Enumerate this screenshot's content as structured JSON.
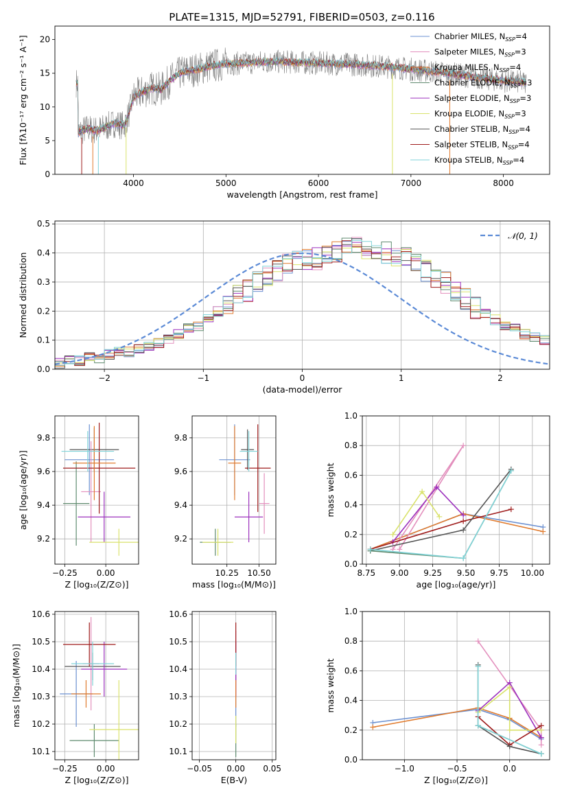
{
  "figure_title": "PLATE=1315, MJD=52791, FIBERID=0503, z=0.116",
  "colors": {
    "chabrier_miles": "#6a8fd0",
    "salpeter_miles": "#e38fbd",
    "kroupa_miles": "#e07a2c",
    "chabrier_elodie": "#5e8a6e",
    "salpeter_elodie": "#9b2fbd",
    "kroupa_elodie": "#d9e26a",
    "chabrier_stelib": "#555555",
    "salpeter_stelib": "#9e1a1a",
    "kroupa_stelib": "#7fd3d8",
    "gaussian": "#5b8ad6",
    "grid": "#b0b0b0"
  },
  "chart_data": [
    {
      "id": "spectrum",
      "type": "line",
      "xlabel": "wavelength [Angstrom, rest frame]",
      "ylabel": "Flux [fλ10⁻¹⁷ erg cm⁻² s⁻¹ A⁻¹]",
      "xlim": [
        3150,
        8500
      ],
      "ylim": [
        0,
        22
      ],
      "xticks": [
        4000,
        5000,
        6000,
        7000,
        8000
      ],
      "yticks": [
        0,
        5,
        10,
        15,
        20
      ],
      "grid": false,
      "legend_position": "top-right",
      "legend": [
        {
          "label": "Chabrier MILES, N",
          "sub": "SSP",
          "tail": "=4",
          "color": "chabrier_miles"
        },
        {
          "label": "Salpeter MILES, N",
          "sub": "SSP",
          "tail": "=3",
          "color": "salpeter_miles"
        },
        {
          "label": "Kroupa MILES, N",
          "sub": "SSP",
          "tail": "=4",
          "color": "kroupa_miles"
        },
        {
          "label": "Chabrier ELODIE, N",
          "sub": "SSP",
          "tail": "=3",
          "color": "chabrier_elodie"
        },
        {
          "label": "Salpeter ELODIE, N",
          "sub": "SSP",
          "tail": "=3",
          "color": "salpeter_elodie"
        },
        {
          "label": "Kroupa ELODIE, N",
          "sub": "SSP",
          "tail": "=3",
          "color": "kroupa_elodie"
        },
        {
          "label": "Chabrier STELIB, N",
          "sub": "SSP",
          "tail": "=4",
          "color": "chabrier_stelib"
        },
        {
          "label": "Salpeter STELIB, N",
          "sub": "SSP",
          "tail": "=4",
          "color": "salpeter_stelib"
        },
        {
          "label": "Kroupa STELIB, N",
          "sub": "SSP",
          "tail": "=4",
          "color": "kroupa_stelib"
        }
      ],
      "continuum": [
        [
          3400,
          6.2
        ],
        [
          3500,
          6.8
        ],
        [
          3600,
          6.5
        ],
        [
          3700,
          7.0
        ],
        [
          3800,
          7.6
        ],
        [
          3900,
          7.2
        ],
        [
          3950,
          9.0
        ],
        [
          4000,
          11.5
        ],
        [
          4100,
          12.2
        ],
        [
          4200,
          12.8
        ],
        [
          4300,
          12.6
        ],
        [
          4400,
          14.0
        ],
        [
          4500,
          15.0
        ],
        [
          4600,
          15.4
        ],
        [
          4700,
          15.6
        ],
        [
          4800,
          16.0
        ],
        [
          4900,
          16.2
        ],
        [
          5000,
          16.4
        ],
        [
          5200,
          16.5
        ],
        [
          5400,
          16.7
        ],
        [
          5600,
          16.7
        ],
        [
          5800,
          16.6
        ],
        [
          6000,
          16.5
        ],
        [
          6200,
          16.4
        ],
        [
          6400,
          16.3
        ],
        [
          6600,
          16.1
        ],
        [
          6800,
          15.9
        ],
        [
          7000,
          15.6
        ],
        [
          7200,
          15.3
        ],
        [
          7400,
          15.0
        ],
        [
          7600,
          14.6
        ],
        [
          7800,
          14.2
        ],
        [
          8000,
          13.9
        ],
        [
          8250,
          13.6
        ]
      ],
      "data_range": [
        3380,
        8250
      ]
    },
    {
      "id": "residuals",
      "type": "histogram",
      "xlabel": "(data-model)/error",
      "ylabel": "Normed distribution",
      "xlim": [
        -2.5,
        2.5
      ],
      "ylim": [
        0,
        0.51
      ],
      "xticks": [
        -2,
        -1,
        0,
        1,
        2
      ],
      "yticks": [
        0.0,
        0.1,
        0.2,
        0.3,
        0.4,
        0.5
      ],
      "grid": true,
      "legend_position": "top-right",
      "legend": [
        {
          "label": "𝒩(0, 1)",
          "color": "gaussian",
          "style": "dashed"
        }
      ],
      "bin_width": 0.1,
      "bin_start": -2.5,
      "base_profile": [
        0.02,
        0.03,
        0.03,
        0.04,
        0.04,
        0.05,
        0.06,
        0.06,
        0.07,
        0.08,
        0.09,
        0.1,
        0.12,
        0.14,
        0.15,
        0.18,
        0.2,
        0.22,
        0.25,
        0.27,
        0.3,
        0.32,
        0.34,
        0.36,
        0.37,
        0.38,
        0.38,
        0.39,
        0.4,
        0.42,
        0.42,
        0.41,
        0.41,
        0.4,
        0.39,
        0.38,
        0.36,
        0.34,
        0.32,
        0.3,
        0.27,
        0.24,
        0.21,
        0.19,
        0.17,
        0.15,
        0.14,
        0.12,
        0.11,
        0.1,
        0.08,
        0.07,
        0.06,
        0.05,
        0.05,
        0.04,
        0.04,
        0.03,
        0.03,
        0.02
      ]
    },
    {
      "id": "age_vs_Z",
      "type": "errorbar",
      "xlabel": "Z [log₁₀(Z/Z⊙)]",
      "ylabel": "age  [log₁₀(age/yr)]",
      "xlim": [
        -0.31,
        0.2
      ],
      "ylim": [
        9.05,
        9.93
      ],
      "xticks": [
        -0.25,
        0.0
      ],
      "xticklabels": [
        "−0.25",
        "0.00"
      ],
      "yticks": [
        9.2,
        9.4,
        9.6,
        9.8
      ],
      "grid": true,
      "points": [
        {
          "x": -0.1,
          "xerr": 0.15,
          "y": 9.67,
          "yerr": 0.21,
          "color": "chabrier_miles"
        },
        {
          "x": -0.18,
          "xerr": 0.08,
          "y": 9.41,
          "yerr": 0.25,
          "color": "chabrier_elodie"
        },
        {
          "x": -0.07,
          "xerr": 0.15,
          "y": 9.73,
          "yerr": 0.13,
          "color": "chabrier_stelib"
        },
        {
          "x": -0.09,
          "xerr": 0.06,
          "y": 9.48,
          "yerr": 0.3,
          "color": "salpeter_miles"
        },
        {
          "x": -0.01,
          "xerr": 0.16,
          "y": 9.33,
          "yerr": 0.15,
          "color": "salpeter_elodie"
        },
        {
          "x": -0.04,
          "xerr": 0.22,
          "y": 9.62,
          "yerr": 0.27,
          "color": "salpeter_stelib"
        },
        {
          "x": -0.07,
          "xerr": 0.13,
          "y": 9.65,
          "yerr": 0.22,
          "color": "kroupa_miles"
        },
        {
          "x": 0.08,
          "xerr": 0.18,
          "y": 9.18,
          "yerr": 0.08,
          "color": "kroupa_elodie"
        },
        {
          "x": -0.11,
          "xerr": 0.16,
          "y": 9.72,
          "yerr": 0.12,
          "color": "kroupa_stelib"
        }
      ]
    },
    {
      "id": "age_vs_mass",
      "type": "errorbar",
      "xlabel": "mass [log₁₀(M/M⊙)]",
      "xlim": [
        9.98,
        10.63
      ],
      "ylim": [
        9.05,
        9.93
      ],
      "xticks": [
        10.25,
        10.5
      ],
      "xticklabels": [
        "10.25",
        "10.50"
      ],
      "yticks": [
        9.2,
        9.4,
        9.6,
        9.8
      ],
      "grid": true,
      "points": [
        {
          "x": 10.31,
          "xerr": 0.12,
          "y": 9.67,
          "yerr": 0.21,
          "color": "chabrier_miles"
        },
        {
          "x": 10.16,
          "xerr": 0.12,
          "y": 9.18,
          "yerr": 0.08,
          "color": "chabrier_elodie"
        },
        {
          "x": 10.41,
          "xerr": 0.05,
          "y": 9.73,
          "yerr": 0.12,
          "color": "chabrier_stelib"
        },
        {
          "x": 10.54,
          "xerr": 0.04,
          "y": 9.41,
          "yerr": 0.18,
          "color": "salpeter_miles"
        },
        {
          "x": 10.42,
          "xerr": 0.11,
          "y": 9.33,
          "yerr": 0.15,
          "color": "salpeter_elodie"
        },
        {
          "x": 10.49,
          "xerr": 0.1,
          "y": 9.62,
          "yerr": 0.26,
          "color": "salpeter_stelib"
        },
        {
          "x": 10.31,
          "xerr": 0.05,
          "y": 9.65,
          "yerr": 0.22,
          "color": "kroupa_miles"
        },
        {
          "x": 10.18,
          "xerr": 0.12,
          "y": 9.18,
          "yerr": 0.08,
          "color": "kroupa_elodie"
        },
        {
          "x": 10.42,
          "xerr": 0.07,
          "y": 9.72,
          "yerr": 0.12,
          "color": "kroupa_stelib"
        }
      ]
    },
    {
      "id": "weight_vs_age",
      "type": "line",
      "xlabel": "age  [log₁₀(age/yr)]",
      "ylabel": "mass weight",
      "xlim": [
        8.72,
        10.13
      ],
      "ylim": [
        0,
        1
      ],
      "xticks": [
        8.75,
        9.0,
        9.25,
        9.5,
        9.75,
        10.0
      ],
      "xticklabels": [
        "8.75",
        "9.00",
        "9.25",
        "9.50",
        "9.75",
        "10.00"
      ],
      "yticks": [
        0.0,
        0.2,
        0.4,
        0.6,
        0.8,
        1.0
      ],
      "grid": true,
      "series": [
        {
          "color": "chabrier_miles",
          "x": [
            8.78,
            9.48,
            10.08
          ],
          "y": [
            0.1,
            0.34,
            0.25
          ]
        },
        {
          "color": "kroupa_miles",
          "x": [
            8.78,
            9.48,
            10.08
          ],
          "y": [
            0.1,
            0.34,
            0.22
          ]
        },
        {
          "color": "salpeter_miles",
          "x": [
            8.95,
            9.48,
            9.0
          ],
          "y": [
            0.1,
            0.8,
            0.1
          ]
        },
        {
          "color": "salpeter_elodie",
          "x": [
            8.95,
            9.28,
            9.48
          ],
          "y": [
            0.15,
            0.52,
            0.33
          ]
        },
        {
          "color": "kroupa_elodie",
          "x": [
            8.95,
            9.17,
            9.3
          ],
          "y": [
            0.2,
            0.49,
            0.32
          ]
        },
        {
          "color": "salpeter_stelib",
          "x": [
            8.78,
            9.48,
            9.84
          ],
          "y": [
            0.1,
            0.29,
            0.37
          ]
        },
        {
          "color": "chabrier_stelib",
          "x": [
            8.78,
            9.48,
            9.84
          ],
          "y": [
            0.09,
            0.23,
            0.64
          ]
        },
        {
          "color": "chabrier_elodie",
          "x": [
            8.78,
            9.48,
            9.84
          ],
          "y": [
            0.09,
            0.04,
            0.63
          ]
        },
        {
          "color": "kroupa_stelib",
          "x": [
            8.78,
            9.48,
            9.84
          ],
          "y": [
            0.1,
            0.04,
            0.63
          ]
        }
      ]
    },
    {
      "id": "mass_vs_Z",
      "type": "errorbar",
      "xlabel": "Z [log₁₀(Z/Z⊙)]",
      "ylabel": "mass [log₁₀(M/M⊙)]",
      "xlim": [
        -0.31,
        0.2
      ],
      "ylim": [
        10.07,
        10.61
      ],
      "xticks": [
        -0.25,
        0.0
      ],
      "xticklabels": [
        "−0.25",
        "0.00"
      ],
      "yticks": [
        10.1,
        10.2,
        10.3,
        10.4,
        10.5,
        10.6
      ],
      "grid": true,
      "points": [
        {
          "x": -0.18,
          "xerr": 0.1,
          "y": 10.31,
          "yerr": 0.12,
          "color": "chabrier_miles"
        },
        {
          "x": -0.07,
          "xerr": 0.15,
          "y": 10.14,
          "yerr": 0.06,
          "color": "chabrier_elodie"
        },
        {
          "x": -0.08,
          "xerr": 0.17,
          "y": 10.41,
          "yerr": 0.05,
          "color": "chabrier_stelib"
        },
        {
          "x": -0.09,
          "xerr": 0.05,
          "y": 10.42,
          "yerr": 0.17,
          "color": "salpeter_miles"
        },
        {
          "x": -0.01,
          "xerr": 0.14,
          "y": 10.4,
          "yerr": 0.1,
          "color": "salpeter_elodie"
        },
        {
          "x": -0.1,
          "xerr": 0.16,
          "y": 10.49,
          "yerr": 0.08,
          "color": "salpeter_stelib"
        },
        {
          "x": -0.12,
          "xerr": 0.09,
          "y": 10.31,
          "yerr": 0.05,
          "color": "kroupa_miles"
        },
        {
          "x": 0.08,
          "xerr": 0.18,
          "y": 10.18,
          "yerr": 0.18,
          "color": "kroupa_elodie"
        },
        {
          "x": -0.08,
          "xerr": 0.13,
          "y": 10.42,
          "yerr": 0.08,
          "color": "kroupa_stelib"
        }
      ]
    },
    {
      "id": "mass_vs_ebv",
      "type": "errorbar",
      "xlabel": "E(B-V)",
      "xlim": [
        -0.06,
        0.055
      ],
      "ylim": [
        10.07,
        10.61
      ],
      "xticks": [
        -0.05,
        0.0,
        0.05
      ],
      "xticklabels": [
        "−0.05",
        "0.00",
        "0.05"
      ],
      "yticks": [
        10.1,
        10.2,
        10.3,
        10.4,
        10.5,
        10.6
      ],
      "grid": true,
      "points": [
        {
          "x": 0.0,
          "xerr": 0.0,
          "y": 10.31,
          "yerr": 0.12,
          "color": "chabrier_miles"
        },
        {
          "x": 0.0,
          "xerr": 0.0,
          "y": 10.14,
          "yerr": 0.06,
          "color": "chabrier_elodie"
        },
        {
          "x": 0.0,
          "xerr": 0.0,
          "y": 10.41,
          "yerr": 0.05,
          "color": "chabrier_stelib"
        },
        {
          "x": 0.0,
          "xerr": 0.0,
          "y": 10.42,
          "yerr": 0.12,
          "color": "salpeter_miles"
        },
        {
          "x": 0.0,
          "xerr": 0.0,
          "y": 10.4,
          "yerr": 0.1,
          "color": "salpeter_elodie"
        },
        {
          "x": 0.0,
          "xerr": 0.0,
          "y": 10.49,
          "yerr": 0.08,
          "color": "salpeter_stelib"
        },
        {
          "x": 0.0,
          "xerr": 0.0,
          "y": 10.31,
          "yerr": 0.05,
          "color": "kroupa_miles"
        },
        {
          "x": 0.0,
          "xerr": 0.0,
          "y": 10.18,
          "yerr": 0.05,
          "color": "kroupa_elodie"
        },
        {
          "x": 0.0,
          "xerr": 0.0,
          "y": 10.42,
          "yerr": 0.04,
          "color": "kroupa_stelib"
        }
      ]
    },
    {
      "id": "weight_vs_Z",
      "type": "line",
      "xlabel": "Z [log₁₀(Z/Z⊙)]",
      "ylabel": "mass weight",
      "xlim": [
        -1.4,
        0.38
      ],
      "ylim": [
        0,
        1
      ],
      "xticks": [
        -1.0,
        -0.5,
        0.0
      ],
      "xticklabels": [
        "−1.0",
        "−0.5",
        "0.0"
      ],
      "yticks": [
        0.0,
        0.2,
        0.4,
        0.6,
        0.8,
        1.0
      ],
      "grid": true,
      "series": [
        {
          "color": "chabrier_miles",
          "x": [
            -1.3,
            -0.3,
            0.0,
            0.3
          ],
          "y": [
            0.25,
            0.34,
            0.27,
            0.14
          ]
        },
        {
          "color": "kroupa_miles",
          "x": [
            -1.3,
            -0.3,
            0.0,
            0.3
          ],
          "y": [
            0.22,
            0.35,
            0.28,
            0.15
          ]
        },
        {
          "color": "salpeter_miles",
          "x": [
            -0.3,
            0.3,
            0.3
          ],
          "y": [
            0.8,
            0.2,
            0.1
          ]
        },
        {
          "color": "salpeter_elodie",
          "x": [
            -0.3,
            0.0,
            0.3
          ],
          "y": [
            0.33,
            0.52,
            0.15
          ]
        },
        {
          "color": "kroupa_elodie",
          "x": [
            -0.3,
            0.0,
            0.0,
            0.3
          ],
          "y": [
            0.32,
            0.49,
            0.2,
            0.2
          ]
        },
        {
          "color": "salpeter_stelib",
          "x": [
            -0.3,
            0.0,
            0.3
          ],
          "y": [
            0.29,
            0.1,
            0.23
          ]
        },
        {
          "color": "chabrier_stelib",
          "x": [
            -0.3,
            -0.3,
            0.0,
            0.3
          ],
          "y": [
            0.64,
            0.23,
            0.09,
            0.04
          ]
        },
        {
          "color": "chabrier_elodie",
          "x": [
            -0.3,
            -0.3,
            0.3
          ],
          "y": [
            0.63,
            0.23,
            0.04
          ]
        },
        {
          "color": "kroupa_stelib",
          "x": [
            -0.3,
            -0.3,
            0.3
          ],
          "y": [
            0.63,
            0.23,
            0.04
          ]
        }
      ]
    }
  ]
}
